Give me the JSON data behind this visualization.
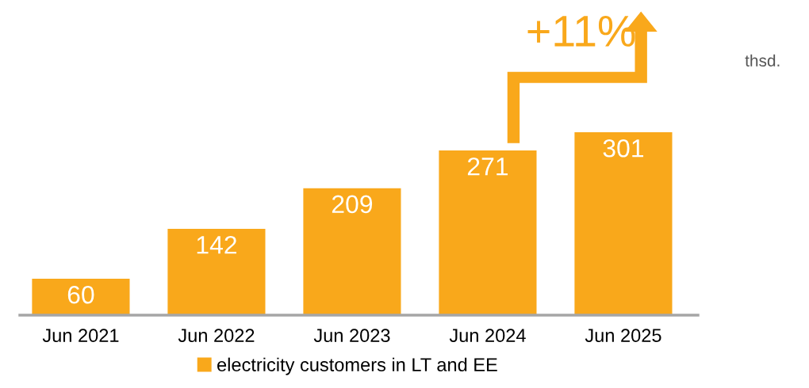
{
  "chart_data": {
    "type": "bar",
    "categories": [
      "Jun 2021",
      "Jun 2022",
      "Jun 2023",
      "Jun 2024",
      "Jun 2025"
    ],
    "series": [
      {
        "name": "electricity customers in LT and EE",
        "color": "#f9a81b",
        "values": [
          60,
          142,
          209,
          271,
          301
        ]
      }
    ],
    "data_labels": true,
    "legend": "bottom",
    "grid": false,
    "annotations": [
      "+11%",
      "thsd."
    ]
  }
}
